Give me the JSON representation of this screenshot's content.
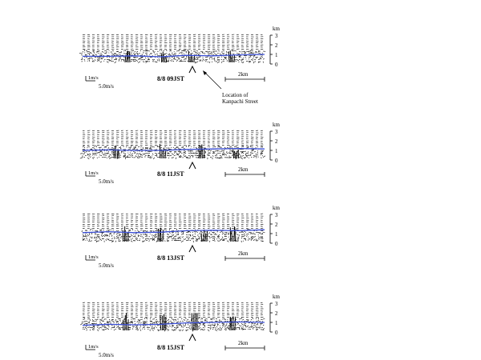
{
  "figure": {
    "axis_unit": "km",
    "height_ticks": [
      "0",
      "1",
      "2",
      "3"
    ],
    "scale_bar_label": "2km",
    "vector_ref_vertical": "1m/s",
    "vector_ref_horizontal": "5.0m/s",
    "annotation": "Location of\nKanpachi Street",
    "annotation_lines": [
      "Location of",
      "Kanpachi Street"
    ],
    "line_color": "#3b4fd8",
    "panels": [
      {
        "time_label": "8/8 09JST",
        "blue_line_km": [
          0.8,
          0.8,
          0.85,
          0.75,
          0.9,
          0.85,
          0.95,
          1.0
        ]
      },
      {
        "time_label": "8/8 11JST",
        "blue_line_km": [
          1.0,
          1.05,
          1.0,
          1.0,
          1.1,
          1.15,
          1.2,
          1.15
        ]
      },
      {
        "time_label": "8/8 13JST",
        "blue_line_km": [
          1.1,
          1.2,
          1.1,
          1.15,
          1.3,
          1.35,
          1.3,
          1.4
        ]
      },
      {
        "time_label": "8/8 15JST",
        "blue_line_km": [
          0.7,
          0.8,
          0.75,
          0.8,
          0.95,
          1.0,
          1.05,
          1.0
        ]
      }
    ]
  }
}
